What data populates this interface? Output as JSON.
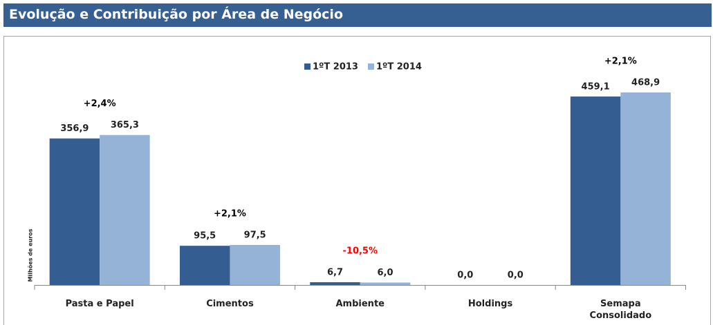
{
  "chart_data": {
    "type": "bar",
    "title": "Evolução e Contribuição por Área de Negócio",
    "ylabel": "Milhões de euros",
    "categories": [
      "Pasta e Papel",
      "Cimentos",
      "Ambiente",
      "Holdings",
      "Semapa\nConsolidado"
    ],
    "series": [
      {
        "name": "1ºT 2013",
        "color": "#345e91",
        "values": [
          356.9,
          95.5,
          6.7,
          0.0,
          459.1
        ],
        "value_labels": [
          "356,9",
          "95,5",
          "6,7",
          "0,0",
          "459,1"
        ]
      },
      {
        "name": "1ºT 2014",
        "color": "#95b3d7",
        "values": [
          365.3,
          97.5,
          6.0,
          0.0,
          468.9
        ],
        "value_labels": [
          "365,3",
          "97,5",
          "6,0",
          "0,0",
          "468,9"
        ]
      }
    ],
    "annotations": [
      "+2,4%",
      "+2,1%",
      "-10,5%",
      null,
      "+2,1%"
    ],
    "annotation_colors": [
      "#000000",
      "#000000",
      "#ff0000",
      null,
      "#000000"
    ],
    "ylim": [
      0,
      500
    ],
    "legend": "top"
  }
}
